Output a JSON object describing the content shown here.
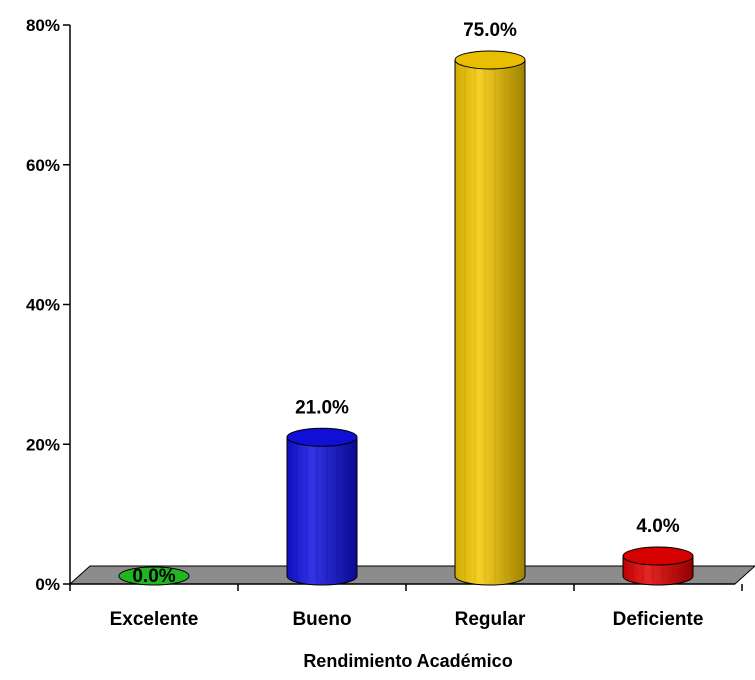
{
  "chart_data": {
    "type": "bar",
    "title": "",
    "xlabel": "Rendimiento Académico",
    "ylabel": "",
    "categories": [
      "Excelente",
      "Bueno",
      "Regular",
      "Deficiente"
    ],
    "values": [
      0.0,
      21.0,
      75.0,
      4.0
    ],
    "data_labels": [
      "0.0%",
      "21.0%",
      "75.0%",
      "4.0%"
    ],
    "ylim": [
      0,
      80
    ],
    "yticks": [
      0,
      20,
      40,
      60,
      80
    ],
    "ytick_labels": [
      "0%",
      "20%",
      "40%",
      "60%",
      "80%"
    ],
    "style": "3d-cylinder",
    "grid": false,
    "legend": "none",
    "colors": [
      "#22c022",
      "#1010e0",
      "#f5c800",
      "#e00000"
    ],
    "floor_color": "#8c8c8c"
  }
}
